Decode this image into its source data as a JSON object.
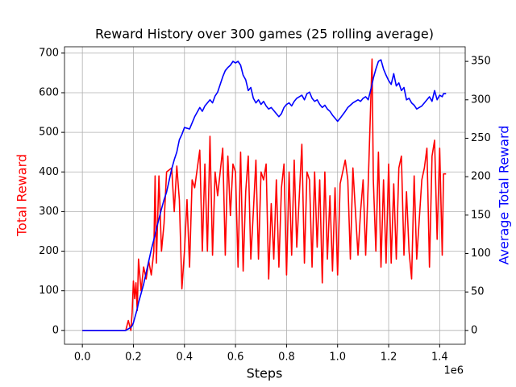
{
  "chart_data": {
    "type": "line",
    "title": "Reward History over 300 games (25 rolling average)",
    "x_label": "Steps",
    "x_offset_label": "1e6",
    "y_label": "Total Reward",
    "y2_label": "Average Total Reward",
    "x": [
      0.0,
      0.03,
      0.06,
      0.09,
      0.12,
      0.15,
      0.17,
      0.18,
      0.19,
      0.195,
      0.2,
      0.205,
      0.21,
      0.215,
      0.22,
      0.23,
      0.24,
      0.25,
      0.26,
      0.27,
      0.28,
      0.285,
      0.29,
      0.3,
      0.31,
      0.32,
      0.33,
      0.35,
      0.36,
      0.37,
      0.38,
      0.39,
      0.4,
      0.41,
      0.42,
      0.43,
      0.44,
      0.46,
      0.47,
      0.48,
      0.49,
      0.5,
      0.51,
      0.52,
      0.53,
      0.55,
      0.56,
      0.57,
      0.58,
      0.59,
      0.6,
      0.61,
      0.62,
      0.63,
      0.64,
      0.65,
      0.66,
      0.67,
      0.68,
      0.69,
      0.7,
      0.71,
      0.72,
      0.73,
      0.74,
      0.75,
      0.76,
      0.77,
      0.78,
      0.79,
      0.8,
      0.81,
      0.82,
      0.83,
      0.84,
      0.86,
      0.87,
      0.88,
      0.89,
      0.9,
      0.91,
      0.92,
      0.93,
      0.94,
      0.95,
      0.96,
      0.97,
      0.98,
      0.99,
      1.0,
      1.01,
      1.03,
      1.04,
      1.05,
      1.06,
      1.08,
      1.09,
      1.1,
      1.11,
      1.12,
      1.135,
      1.14,
      1.15,
      1.16,
      1.17,
      1.18,
      1.19,
      1.2,
      1.21,
      1.22,
      1.23,
      1.24,
      1.25,
      1.26,
      1.27,
      1.28,
      1.29,
      1.3,
      1.31,
      1.33,
      1.34,
      1.35,
      1.36,
      1.37,
      1.38,
      1.39,
      1.4,
      1.41,
      1.415,
      1.425
    ],
    "series": [
      {
        "name": "Total Reward",
        "color": "#ff0000",
        "axis": "y",
        "values": [
          0,
          0,
          0,
          0,
          0,
          0,
          0,
          25,
          0,
          45,
          125,
          80,
          120,
          50,
          180,
          100,
          160,
          130,
          175,
          140,
          200,
          390,
          170,
          390,
          200,
          270,
          400,
          410,
          300,
          415,
          330,
          105,
          200,
          330,
          160,
          380,
          360,
          455,
          200,
          420,
          200,
          490,
          190,
          400,
          340,
          460,
          190,
          440,
          290,
          420,
          400,
          160,
          450,
          150,
          350,
          440,
          180,
          300,
          430,
          180,
          400,
          380,
          420,
          130,
          320,
          180,
          380,
          160,
          360,
          420,
          140,
          400,
          190,
          430,
          210,
          470,
          170,
          400,
          380,
          160,
          400,
          210,
          380,
          120,
          400,
          180,
          340,
          150,
          360,
          140,
          370,
          430,
          380,
          180,
          410,
          190,
          300,
          380,
          190,
          370,
          685,
          380,
          200,
          450,
          160,
          380,
          170,
          420,
          170,
          370,
          180,
          410,
          440,
          190,
          350,
          200,
          130,
          390,
          180,
          380,
          410,
          460,
          160,
          440,
          480,
          230,
          460,
          190,
          395,
          395
        ]
      },
      {
        "name": "Average Total Reward",
        "color": "#0000ff",
        "axis": "y2",
        "values": [
          0,
          0,
          0,
          0,
          0,
          0,
          0,
          2,
          4,
          6,
          10,
          16,
          22,
          28,
          36,
          48,
          60,
          75,
          90,
          105,
          118,
          125,
          132,
          145,
          158,
          170,
          180,
          210,
          222,
          232,
          248,
          255,
          264,
          263,
          262,
          270,
          278,
          290,
          285,
          292,
          296,
          300,
          296,
          305,
          310,
          330,
          338,
          342,
          345,
          350,
          348,
          350,
          345,
          332,
          326,
          312,
          316,
          302,
          296,
          300,
          294,
          298,
          292,
          288,
          290,
          286,
          282,
          278,
          282,
          290,
          294,
          296,
          292,
          298,
          302,
          306,
          300,
          308,
          310,
          302,
          298,
          300,
          294,
          290,
          293,
          288,
          285,
          280,
          276,
          272,
          276,
          285,
          290,
          293,
          296,
          300,
          298,
          302,
          304,
          300,
          320,
          328,
          340,
          350,
          352,
          340,
          332,
          325,
          320,
          334,
          318,
          322,
          312,
          316,
          300,
          302,
          296,
          293,
          288,
          292,
          296,
          300,
          304,
          298,
          312,
          300,
          306,
          304,
          308,
          308
        ]
      }
    ],
    "xlim": [
      -0.07,
      1.5
    ],
    "xticks": [
      {
        "value": 0,
        "label": "0.0"
      },
      0.2,
      0.4,
      0.6,
      0.8,
      {
        "value": 1,
        "label": "1.0"
      },
      1.2,
      1.4
    ],
    "ylim": [
      -35,
      716
    ],
    "yticks": [
      0,
      100,
      200,
      300,
      400,
      500,
      600,
      700
    ],
    "y2lim": [
      -18,
      369
    ],
    "y2ticks": [
      0,
      50,
      100,
      150,
      200,
      250,
      300,
      350
    ],
    "grid": true
  }
}
